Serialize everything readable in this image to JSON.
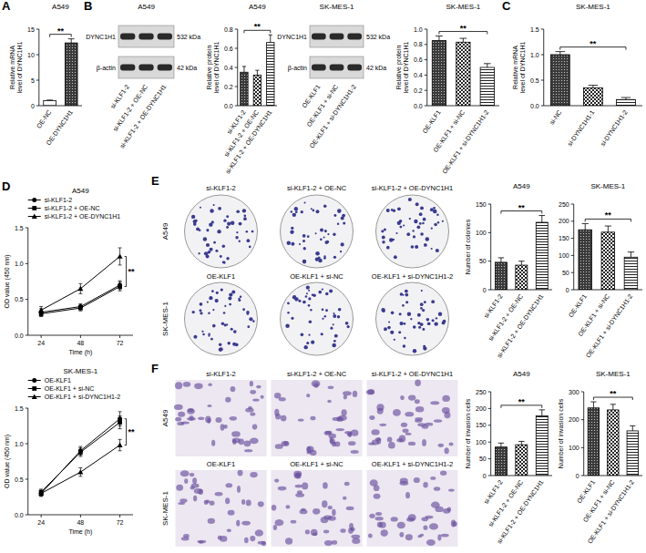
{
  "panel_letters": [
    "A",
    "B",
    "C",
    "D",
    "E",
    "F"
  ],
  "blots": [
    {
      "title": "A549",
      "lanes": [
        "si-KLF1-2",
        "si-KLF1-2 + OE-NC",
        "si-KLF1-2 + OE-DYNC1H1"
      ],
      "bands": [
        {
          "name": "DYNC1H1",
          "size": "532 kDa"
        },
        {
          "name": "β-actin",
          "size": "42 kDa"
        }
      ]
    },
    {
      "title": "SK-MES-1",
      "lanes": [
        "OE-KLF1",
        "OE-KLF1 + si-NC",
        "OE-KLF1 + si-DYNC1H1-2"
      ],
      "bands": [
        {
          "name": "DYNC1H1",
          "size": "532 kDa"
        },
        {
          "name": "β-actin",
          "size": "42 kDa"
        }
      ]
    }
  ],
  "colony_images": {
    "rows": [
      {
        "label": "A549",
        "columns": [
          "si-KLF1-2",
          "si-KLF1-2 + OE-NC",
          "si-KLF1-2 + OE-DYNC1H1"
        ]
      },
      {
        "label": "SK-MES-1",
        "columns": [
          "OE-KLF1",
          "OE-KLF1 + si-NC",
          "OE-KLF1 + si-DYNC1H1-2"
        ]
      }
    ]
  },
  "invasion_images": {
    "rows": [
      {
        "label": "A549",
        "columns": [
          "si-KLF1-2",
          "si-KLF1-2 + OE-NC",
          "si-KLF1-2 + OE-DYNC1H1"
        ]
      },
      {
        "label": "SK-MES-1",
        "columns": [
          "OE-KLF1",
          "OE-KLF1 + si-NC",
          "OE-KLF1 + si-DYNC1H1-2"
        ]
      }
    ]
  },
  "chart_data": [
    {
      "type": "bar",
      "title": "A549",
      "y_label": "Relative mRNA level of DYNC1H1",
      "categories": [
        "OE-NC",
        "OE-DYNC1H1"
      ],
      "values": [
        1,
        12.3
      ],
      "errors": [
        0.1,
        0.8
      ],
      "ylim": [
        0,
        15
      ],
      "yticks": [
        0,
        5,
        10,
        15
      ],
      "annotation": "**"
    },
    {
      "type": "bar",
      "title": "A549",
      "y_label": "Relative protein level of DYNC1H1",
      "categories": [
        "si-KLF1-2",
        "si-KLF1-2 + OE-NC",
        "si-KLF1-2 + OE-DYNC1H1"
      ],
      "values": [
        0.35,
        0.32,
        0.66
      ],
      "errors": [
        0.06,
        0.05,
        0.08
      ],
      "ylim": [
        0,
        0.8
      ],
      "yticks": [
        {
          "value": 0,
          "label": "0.0"
        },
        {
          "value": 0.2,
          "label": "0.2"
        },
        {
          "value": 0.4,
          "label": "0.4"
        },
        {
          "value": 0.6,
          "label": "0.6"
        },
        {
          "value": 0.8,
          "label": "0.8"
        }
      ],
      "annotation": "**"
    },
    {
      "type": "bar",
      "title": "SK-MES-1",
      "y_label": "Relative protein level of DYNC1H1",
      "categories": [
        "OE-KLF1",
        "OE-KLF1 + si-NC",
        "OE-KLF1 + si-DYNC1H1-2"
      ],
      "values": [
        0.85,
        0.83,
        0.5
      ],
      "errors": [
        0.06,
        0.05,
        0.05
      ],
      "ylim": [
        0,
        1
      ],
      "yticks": [
        {
          "value": 0,
          "label": "0.0"
        },
        {
          "value": 0.2,
          "label": "0.2"
        },
        {
          "value": 0.4,
          "label": "0.4"
        },
        {
          "value": 0.6,
          "label": "0.6"
        },
        {
          "value": 0.8,
          "label": "0.8"
        },
        {
          "value": 1,
          "label": "1.0"
        }
      ],
      "annotation": "**"
    },
    {
      "type": "bar",
      "title": "SK-MES-1",
      "y_label": "Relative mRNA level of DYNC1H1",
      "categories": [
        "si-NC",
        "si-DYNC1H1-1",
        "si-DYNC1H1-2"
      ],
      "values": [
        1,
        0.35,
        0.12
      ],
      "errors": [
        0.06,
        0.05,
        0.04
      ],
      "ylim": [
        0,
        1.5
      ],
      "yticks": [
        {
          "value": 0,
          "label": "0.0"
        },
        {
          "value": 0.5,
          "label": "0.5"
        },
        {
          "value": 1,
          "label": "1.0"
        },
        {
          "value": 1.5,
          "label": "1.5"
        }
      ],
      "annotation": "**"
    },
    {
      "type": "line",
      "title": "A549",
      "x_label": "Time (h)",
      "y_label": "OD value (450 nm)",
      "x": [
        24,
        48,
        72
      ],
      "xlim": [
        16,
        80
      ],
      "xticks": [
        24,
        48,
        72
      ],
      "ylim": [
        0,
        1.5
      ],
      "yticks": [
        {
          "value": 0,
          "label": "0.0"
        },
        {
          "value": 0.5,
          "label": "0.5"
        },
        {
          "value": 1,
          "label": "1.0"
        },
        {
          "value": 1.5,
          "label": "1.5"
        }
      ],
      "legend": "top",
      "annotation": "**",
      "series": [
        {
          "name": "si-KLF1-2",
          "color": "#000000",
          "marker": "circle",
          "values": [
            0.32,
            0.4,
            0.7
          ],
          "errors": [
            0.05,
            0.04,
            0.06
          ]
        },
        {
          "name": "si-KLF1-2 + OE-NC",
          "color": "#000000",
          "marker": "square",
          "values": [
            0.3,
            0.38,
            0.68
          ],
          "errors": [
            0.04,
            0.04,
            0.06
          ]
        },
        {
          "name": "si-KLF1-2 + OE-DYNC1H1",
          "color": "#000000",
          "marker": "triangle",
          "values": [
            0.35,
            0.65,
            1.1
          ],
          "errors": [
            0.05,
            0.07,
            0.12
          ]
        }
      ]
    },
    {
      "type": "line",
      "title": "SK-MES-1",
      "x_label": "Time (h)",
      "y_label": "OD value (450 nm)",
      "x": [
        24,
        48,
        72
      ],
      "xlim": [
        16,
        80
      ],
      "xticks": [
        24,
        48,
        72
      ],
      "ylim": [
        0,
        1.5
      ],
      "yticks": [
        {
          "value": 0,
          "label": "0.0"
        },
        {
          "value": 0.5,
          "label": "0.5"
        },
        {
          "value": 1,
          "label": "1.0"
        },
        {
          "value": 1.5,
          "label": "1.5"
        }
      ],
      "legend": "top",
      "annotation": "**",
      "series": [
        {
          "name": "OE-KLF1",
          "color": "#000000",
          "marker": "circle",
          "values": [
            0.3,
            0.9,
            1.35
          ],
          "errors": [
            0.04,
            0.06,
            0.1
          ]
        },
        {
          "name": "OE-KLF1 + si-NC",
          "color": "#000000",
          "marker": "square",
          "values": [
            0.32,
            0.88,
            1.3
          ],
          "errors": [
            0.04,
            0.06,
            0.09
          ]
        },
        {
          "name": "OE-KLF1 + si-DYNC1H1-2",
          "color": "#000000",
          "marker": "triangle",
          "values": [
            0.3,
            0.6,
            0.98
          ],
          "errors": [
            0.04,
            0.06,
            0.08
          ]
        }
      ]
    },
    {
      "type": "bar",
      "title": "A549",
      "y_label": "Number of colonies",
      "categories": [
        "si-KLF1-2",
        "si-KLF1-2 + OE-NC",
        "si-KLF1-2 + OE-DYNC1H1"
      ],
      "values": [
        48,
        43,
        118
      ],
      "errors": [
        8,
        7,
        12
      ],
      "ylim": [
        0,
        150
      ],
      "yticks": [
        0,
        50,
        100,
        150
      ],
      "annotation": "**"
    },
    {
      "type": "bar",
      "title": "SK-MES-1",
      "categories": [
        "OE-KLF1",
        "OE-KLF1 + si-NC",
        "OE-KLF1 + si-DYNC1H1-2"
      ],
      "values": [
        175,
        168,
        95
      ],
      "errors": [
        18,
        18,
        15
      ],
      "ylim": [
        0,
        250
      ],
      "yticks": [
        0,
        50,
        100,
        150,
        200,
        250
      ],
      "annotation": "**"
    },
    {
      "type": "bar",
      "title": "A549",
      "y_label": "Number of invasion cells",
      "categories": [
        "si-KLF1-2",
        "si-KLF1-2 + OE-NC",
        "si-KLF1-2 + OE-DYNC1H1"
      ],
      "values": [
        85,
        92,
        178
      ],
      "errors": [
        12,
        10,
        18
      ],
      "ylim": [
        0,
        250
      ],
      "yticks": [
        0,
        50,
        100,
        150,
        200,
        250
      ],
      "annotation": "**"
    },
    {
      "type": "bar",
      "title": "SK-MES-1",
      "y_label": "Number of invasion cells",
      "categories": [
        "OE-KLF1",
        "OE-KLF1 + si-NC",
        "OE-KLF1 + si-DYNC1H1-2"
      ],
      "values": [
        242,
        235,
        160
      ],
      "errors": [
        22,
        20,
        18
      ],
      "ylim": [
        0,
        300
      ],
      "yticks": [
        0,
        100,
        200,
        300
      ],
      "annotation": "**"
    }
  ]
}
